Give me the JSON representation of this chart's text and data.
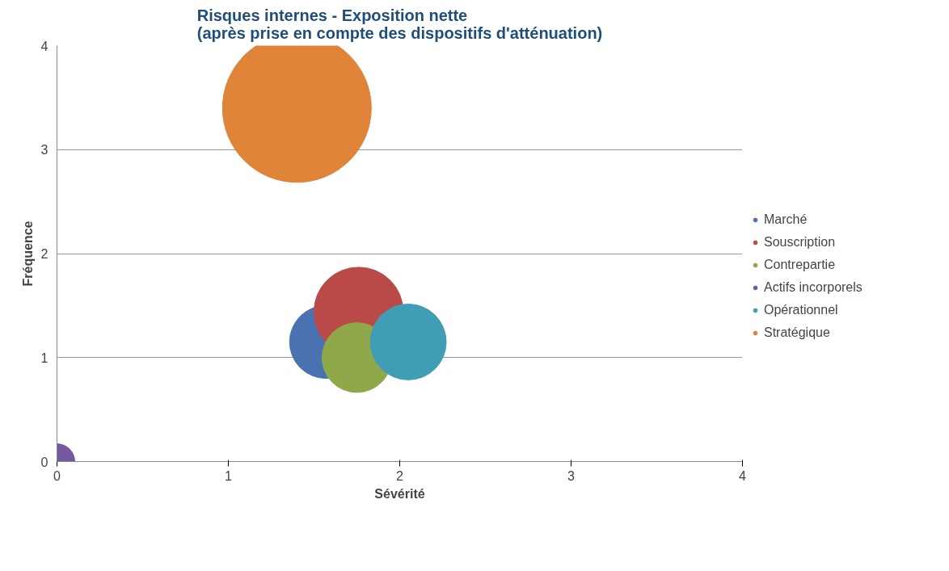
{
  "chart_data": {
    "type": "bubble",
    "title": "Risques internes - Exposition nette\n(après prise en compte des dispositifs d'atténuation)",
    "xlabel": "Sévérité",
    "ylabel": "Fréquence",
    "series": [
      {
        "name": "Marché",
        "color": "#4a72b0",
        "x": [
          1.57
        ],
        "values": [
          1.15
        ],
        "sizes": [
          0.24
        ]
      },
      {
        "name": "Souscription",
        "color": "#b94a47",
        "x": [
          1.76
        ],
        "values": [
          1.44
        ],
        "sizes": [
          0.36
        ]
      },
      {
        "name": "Contrepartie",
        "color": "#8ea84a",
        "x": [
          1.75
        ],
        "values": [
          1.0
        ],
        "sizes": [
          0.22
        ]
      },
      {
        "name": "Actifs incorporels",
        "color": "#7459a0",
        "x": [
          0
        ],
        "values": [
          0
        ],
        "sizes": [
          0.057
        ]
      },
      {
        "name": "Opérationnel",
        "color": "#3f9eb5",
        "x": [
          2.05
        ],
        "values": [
          1.15
        ],
        "sizes": [
          0.26
        ]
      },
      {
        "name": "Stratégique",
        "color": "#e0843a",
        "x": [
          1.4
        ],
        "values": [
          3.4
        ],
        "sizes": [
          1
        ]
      }
    ],
    "xlim": [
      0,
      4
    ],
    "ylim": [
      0,
      4
    ],
    "xticks": [
      0,
      1,
      2,
      3,
      4
    ],
    "yticks": [
      0,
      1,
      2,
      3,
      4
    ],
    "grid": "y",
    "legend": "right"
  }
}
